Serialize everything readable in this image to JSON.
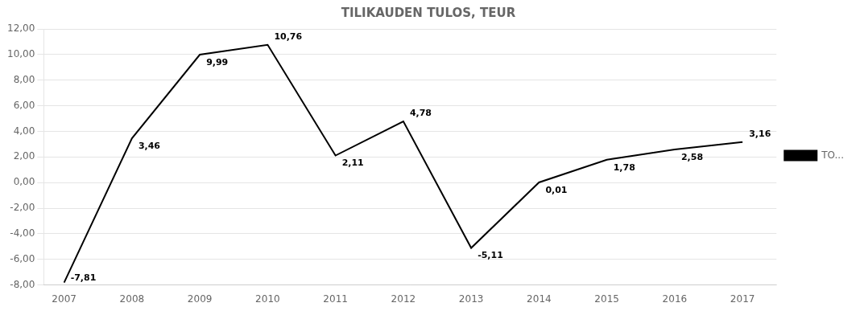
{
  "chart_data": {
    "type": "line",
    "title": "TILIKAUDEN TULOS, TEUR",
    "x": [
      2007,
      2008,
      2009,
      2010,
      2011,
      2012,
      2013,
      2014,
      2015,
      2016,
      2017
    ],
    "xlim": [
      2006.7,
      2017.5
    ],
    "xticks": [
      2007,
      2008,
      2009,
      2010,
      2011,
      2012,
      2013,
      2014,
      2015,
      2016,
      2017
    ],
    "ylim": [
      -8.0,
      12.0
    ],
    "yticks": [
      {
        "value": -8.0,
        "label": "-8,00"
      },
      {
        "value": -6.0,
        "label": "-6,00"
      },
      {
        "value": -4.0,
        "label": "-4,00"
      },
      {
        "value": -2.0,
        "label": "-2,00"
      },
      {
        "value": 0.0,
        "label": "0,00"
      },
      {
        "value": 2.0,
        "label": "2,00"
      },
      {
        "value": 4.0,
        "label": "4,00"
      },
      {
        "value": 6.0,
        "label": "6,00"
      },
      {
        "value": 8.0,
        "label": "8,00"
      },
      {
        "value": 10.0,
        "label": "10,00"
      },
      {
        "value": 12.0,
        "label": "12,00"
      }
    ],
    "grid": "y",
    "legend": "right",
    "data_labels": true,
    "series": [
      {
        "name": "TO...",
        "color": "#000000",
        "values": [
          -7.81,
          3.46,
          9.99,
          10.76,
          2.11,
          4.78,
          -5.11,
          0.01,
          1.78,
          2.58,
          3.16
        ],
        "value_labels": [
          "-7,81",
          "3,46",
          "9,99",
          "10,76",
          "2,11",
          "4,78",
          "-5,11",
          "0,01",
          "1,78",
          "2,58",
          "3,16"
        ]
      }
    ]
  }
}
